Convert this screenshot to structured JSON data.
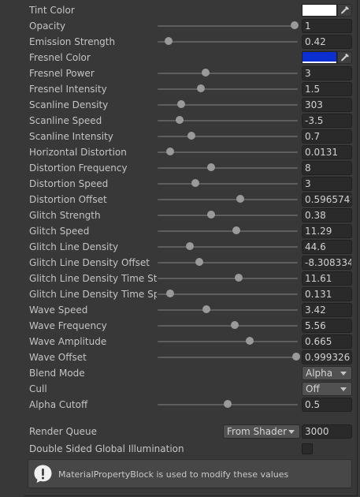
{
  "colors": {
    "tint": "#ffffff",
    "fresnel": "#0c2fd2",
    "panel_bg": "#383838"
  },
  "icons": {
    "color_picker": "eyedropper-icon",
    "dropdown": "chevron-down-icon",
    "help": "info-icon"
  },
  "properties": [
    {
      "label": "Tint Color",
      "type": "color",
      "color": "#ffffff"
    },
    {
      "label": "Opacity",
      "type": "slider",
      "value": "1",
      "fraction": 0.98
    },
    {
      "label": "Emission Strength",
      "type": "slider",
      "value": "0.42",
      "fraction": 0.08
    },
    {
      "label": "Fresnel Color",
      "type": "color",
      "color": "#0c2fd2"
    },
    {
      "label": "Fresnel Power",
      "type": "slider",
      "value": "3",
      "fraction": 0.34
    },
    {
      "label": "Fresnel Intensity",
      "type": "slider",
      "value": "1.5",
      "fraction": 0.31
    },
    {
      "label": "Scanline Density",
      "type": "slider",
      "value": "303",
      "fraction": 0.17
    },
    {
      "label": "Scanline Speed",
      "type": "slider",
      "value": "-3.5",
      "fraction": 0.16
    },
    {
      "label": "Scanline Intensity",
      "type": "slider",
      "value": "0.7",
      "fraction": 0.24
    },
    {
      "label": "Horizontal Distortion",
      "type": "slider",
      "value": "0.0131",
      "fraction": 0.09
    },
    {
      "label": "Distortion Frequency",
      "type": "slider",
      "value": "8",
      "fraction": 0.38
    },
    {
      "label": "Distortion Speed",
      "type": "slider",
      "value": "3",
      "fraction": 0.27
    },
    {
      "label": "Distortion Offset",
      "type": "slider",
      "value": "0.5965741",
      "fraction": 0.59
    },
    {
      "label": "Glitch Strength",
      "type": "slider",
      "value": "0.38",
      "fraction": 0.38
    },
    {
      "label": "Glitch Speed",
      "type": "slider",
      "value": "11.29",
      "fraction": 0.56
    },
    {
      "label": "Glitch Line Density",
      "type": "slider",
      "value": "44.6",
      "fraction": 0.23
    },
    {
      "label": "Glitch Line Density Offset",
      "type": "slider",
      "value": "-8.308334",
      "fraction": 0.3
    },
    {
      "label": "Glitch Line Density Time Stre",
      "type": "slider",
      "value": "11.61",
      "fraction": 0.58
    },
    {
      "label": "Glitch Line Density Time Spe",
      "type": "slider",
      "value": "0.131",
      "fraction": 0.09
    },
    {
      "label": "Wave Speed",
      "type": "slider",
      "value": "3.42",
      "fraction": 0.35
    },
    {
      "label": "Wave Frequency",
      "type": "slider",
      "value": "5.56",
      "fraction": 0.55
    },
    {
      "label": "Wave Amplitude",
      "type": "slider",
      "value": "0.665",
      "fraction": 0.66
    },
    {
      "label": "Wave Offset",
      "type": "slider",
      "value": "0.999326",
      "fraction": 0.99
    },
    {
      "label": "Blend Mode",
      "type": "dropdown",
      "value": "Alpha"
    },
    {
      "label": "Cull",
      "type": "dropdown",
      "value": "Off"
    },
    {
      "label": "Alpha Cutoff",
      "type": "slider",
      "value": "0.5",
      "fraction": 0.5
    }
  ],
  "render_queue": {
    "label": "Render Queue",
    "mode": "From Shader",
    "value": "3000"
  },
  "double_sided_gi": {
    "label": "Double Sided Global Illumination",
    "checked": false
  },
  "help_message": "MaterialPropertyBlock is used to modify these values"
}
